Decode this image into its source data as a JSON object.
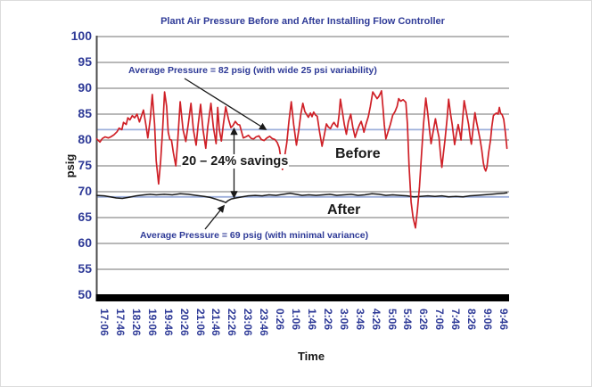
{
  "chart_data": {
    "type": "line",
    "title": "Plant Air Pressure Before and After Installing Flow Controller",
    "xlabel": "Time",
    "ylabel": "psig",
    "ylim": [
      50,
      100
    ],
    "grid": true,
    "legend_position": "inline-labels",
    "y_ticks": [
      100,
      95,
      90,
      85,
      80,
      75,
      70,
      65,
      60,
      55,
      50
    ],
    "x_ticks": [
      "17:06",
      "17:46",
      "18:26",
      "19:06",
      "19:46",
      "20:26",
      "21:06",
      "21:46",
      "22:26",
      "23:06",
      "23:46",
      "0:26",
      "1:06",
      "1:46",
      "2:26",
      "3:06",
      "3:46",
      "4:26",
      "5:06",
      "5:46",
      "6:26",
      "7:06",
      "7:46",
      "8:26",
      "9:06",
      "9:46"
    ],
    "x_tick_interval_minutes": 40,
    "annotations": {
      "avg_before": "Average Pressure = 82 psig (with wide 25 psi variability)",
      "savings": "20 – 24% savings",
      "avg_after": "Average Pressure = 69 psig (with minimal variance)"
    },
    "colors": {
      "text_blue": "#2e3a97",
      "text_black": "#1a1a1a",
      "before_line": "#cf2027",
      "after_line": "#1a1a1a",
      "average_line": "#9dafdb",
      "gridline": "#8e8e8e",
      "axis": "#4d4d4d",
      "baseline_bar": "#000000",
      "background": "#ffffff"
    },
    "series": [
      {
        "name": "Before",
        "label": "Before",
        "color": "#cf2027",
        "average": 82,
        "points": [
          [
            -19,
            80.2
          ],
          [
            -11,
            79.6
          ],
          [
            -5,
            80.3
          ],
          [
            2,
            80.6
          ],
          [
            10,
            80.4
          ],
          [
            16,
            80.6
          ],
          [
            24,
            81.0
          ],
          [
            32,
            81.6
          ],
          [
            37,
            82.3
          ],
          [
            44,
            82.0
          ],
          [
            48,
            83.4
          ],
          [
            55,
            83.0
          ],
          [
            59,
            84.3
          ],
          [
            64,
            83.9
          ],
          [
            70,
            84.7
          ],
          [
            76,
            84.3
          ],
          [
            82,
            85.0
          ],
          [
            88,
            83.5
          ],
          [
            98,
            85.8
          ],
          [
            104,
            83.0
          ],
          [
            109,
            80.4
          ],
          [
            115,
            84.0
          ],
          [
            120,
            88.8
          ],
          [
            126,
            83.0
          ],
          [
            130,
            76.0
          ],
          [
            136,
            71.5
          ],
          [
            141,
            76.0
          ],
          [
            146,
            82.0
          ],
          [
            151,
            89.3
          ],
          [
            156,
            86.5
          ],
          [
            160,
            81.5
          ],
          [
            164,
            80.1
          ],
          [
            168,
            80.0
          ],
          [
            173,
            77.5
          ],
          [
            179,
            75.0
          ],
          [
            184,
            80.0
          ],
          [
            190,
            87.4
          ],
          [
            197,
            82.0
          ],
          [
            204,
            79.7
          ],
          [
            210,
            83.0
          ],
          [
            217,
            87.1
          ],
          [
            223,
            82.0
          ],
          [
            230,
            79.0
          ],
          [
            235,
            83.0
          ],
          [
            241,
            86.9
          ],
          [
            247,
            82.0
          ],
          [
            254,
            78.4
          ],
          [
            259,
            82.5
          ],
          [
            267,
            87.1
          ],
          [
            273,
            82.5
          ],
          [
            280,
            79.3
          ],
          [
            284,
            86.3
          ],
          [
            288,
            82.0
          ],
          [
            293,
            79.8
          ],
          [
            298,
            83.0
          ],
          [
            304,
            86.4
          ],
          [
            311,
            84.0
          ],
          [
            317,
            82.4
          ],
          [
            322,
            82.8
          ],
          [
            328,
            83.6
          ],
          [
            334,
            83.0
          ],
          [
            339,
            82.9
          ],
          [
            344,
            81.5
          ],
          [
            348,
            80.4
          ],
          [
            354,
            80.6
          ],
          [
            361,
            80.9
          ],
          [
            368,
            80.3
          ],
          [
            374,
            80.2
          ],
          [
            380,
            80.6
          ],
          [
            387,
            80.8
          ],
          [
            393,
            80.1
          ],
          [
            400,
            79.9
          ],
          [
            407,
            80.4
          ],
          [
            414,
            80.7
          ],
          [
            420,
            80.3
          ],
          [
            427,
            80.1
          ],
          [
            433,
            79.5
          ],
          [
            438,
            78.5
          ],
          [
            443,
            76.0
          ],
          [
            446,
            74.3
          ],
          [
            451,
            76.5
          ],
          [
            457,
            79.5
          ],
          [
            462,
            83.5
          ],
          [
            468,
            87.4
          ],
          [
            474,
            83.0
          ],
          [
            481,
            79.0
          ],
          [
            487,
            82.0
          ],
          [
            492,
            85.0
          ],
          [
            497,
            87.1
          ],
          [
            502,
            85.5
          ],
          [
            506,
            85.0
          ],
          [
            511,
            84.4
          ],
          [
            516,
            85.2
          ],
          [
            520,
            84.5
          ],
          [
            524,
            85.4
          ],
          [
            529,
            84.8
          ],
          [
            533,
            84.6
          ],
          [
            539,
            81.5
          ],
          [
            545,
            78.8
          ],
          [
            551,
            81.0
          ],
          [
            556,
            83.1
          ],
          [
            561,
            82.5
          ],
          [
            566,
            82.2
          ],
          [
            571,
            83.0
          ],
          [
            575,
            83.4
          ],
          [
            580,
            82.8
          ],
          [
            584,
            82.5
          ],
          [
            588,
            85.0
          ],
          [
            591,
            87.9
          ],
          [
            596,
            85.5
          ],
          [
            601,
            83.0
          ],
          [
            606,
            81.1
          ],
          [
            611,
            83.5
          ],
          [
            617,
            85.0
          ],
          [
            622,
            82.5
          ],
          [
            628,
            80.5
          ],
          [
            634,
            82.0
          ],
          [
            639,
            83.0
          ],
          [
            643,
            83.6
          ],
          [
            647,
            82.5
          ],
          [
            650,
            81.5
          ],
          [
            655,
            83.0
          ],
          [
            661,
            84.5
          ],
          [
            666,
            86.5
          ],
          [
            672,
            89.3
          ],
          [
            678,
            88.6
          ],
          [
            683,
            88.0
          ],
          [
            687,
            88.4
          ],
          [
            691,
            89.0
          ],
          [
            694,
            89.5
          ],
          [
            698,
            86.0
          ],
          [
            701,
            83.0
          ],
          [
            705,
            80.2
          ],
          [
            710,
            81.5
          ],
          [
            716,
            83.0
          ],
          [
            722,
            84.8
          ],
          [
            728,
            85.5
          ],
          [
            733,
            86.5
          ],
          [
            737,
            88.0
          ],
          [
            742,
            87.5
          ],
          [
            748,
            87.8
          ],
          [
            755,
            87.3
          ],
          [
            759,
            83.0
          ],
          [
            763,
            75.0
          ],
          [
            768,
            68.0
          ],
          [
            773,
            65.0
          ],
          [
            779,
            63.0
          ],
          [
            784,
            66.5
          ],
          [
            789,
            71.0
          ],
          [
            794,
            77.0
          ],
          [
            799,
            83.0
          ],
          [
            805,
            88.1
          ],
          [
            810,
            85.0
          ],
          [
            814,
            82.0
          ],
          [
            818,
            79.3
          ],
          [
            823,
            81.5
          ],
          [
            829,
            84.1
          ],
          [
            834,
            82.0
          ],
          [
            838,
            80.5
          ],
          [
            842,
            77.0
          ],
          [
            845,
            74.7
          ],
          [
            849,
            77.5
          ],
          [
            853,
            80.0
          ],
          [
            858,
            84.0
          ],
          [
            862,
            87.9
          ],
          [
            867,
            85.0
          ],
          [
            871,
            83.0
          ],
          [
            877,
            79.1
          ],
          [
            881,
            81.0
          ],
          [
            886,
            83.0
          ],
          [
            890,
            81.5
          ],
          [
            893,
            80.0
          ],
          [
            897,
            84.0
          ],
          [
            901,
            87.6
          ],
          [
            906,
            85.5
          ],
          [
            912,
            83.0
          ],
          [
            916,
            80.5
          ],
          [
            919,
            79.2
          ],
          [
            923,
            82.0
          ],
          [
            928,
            85.3
          ],
          [
            932,
            83.5
          ],
          [
            936,
            82.0
          ],
          [
            941,
            80.0
          ],
          [
            945,
            78.0
          ],
          [
            949,
            75.5
          ],
          [
            952,
            74.5
          ],
          [
            955,
            74.0
          ],
          [
            958,
            74.8
          ],
          [
            962,
            77.5
          ],
          [
            967,
            80.0
          ],
          [
            970,
            82.5
          ],
          [
            974,
            84.7
          ],
          [
            978,
            85.0
          ],
          [
            982,
            85.2
          ],
          [
            986,
            85.0
          ],
          [
            989,
            86.3
          ],
          [
            992,
            85.2
          ],
          [
            996,
            84.9
          ],
          [
            1000,
            84.0
          ],
          [
            1004,
            81.5
          ],
          [
            1008,
            78.4
          ]
        ]
      },
      {
        "name": "After",
        "label": "After",
        "color": "#1a1a1a",
        "average": 69,
        "points": [
          [
            -19,
            69.3
          ],
          [
            0,
            69.2
          ],
          [
            15,
            69.0
          ],
          [
            30,
            68.8
          ],
          [
            45,
            68.7
          ],
          [
            60,
            68.9
          ],
          [
            80,
            69.2
          ],
          [
            100,
            69.4
          ],
          [
            115,
            69.5
          ],
          [
            130,
            69.4
          ],
          [
            150,
            69.5
          ],
          [
            170,
            69.4
          ],
          [
            190,
            69.6
          ],
          [
            210,
            69.5
          ],
          [
            230,
            69.3
          ],
          [
            250,
            69.1
          ],
          [
            265,
            68.9
          ],
          [
            278,
            68.6
          ],
          [
            290,
            68.3
          ],
          [
            298,
            68.1
          ],
          [
            304,
            67.9
          ],
          [
            310,
            68.3
          ],
          [
            318,
            68.6
          ],
          [
            330,
            68.8
          ],
          [
            345,
            69.0
          ],
          [
            360,
            69.2
          ],
          [
            378,
            69.3
          ],
          [
            395,
            69.2
          ],
          [
            412,
            69.4
          ],
          [
            430,
            69.3
          ],
          [
            448,
            69.5
          ],
          [
            465,
            69.7
          ],
          [
            480,
            69.5
          ],
          [
            495,
            69.3
          ],
          [
            512,
            69.4
          ],
          [
            530,
            69.3
          ],
          [
            548,
            69.4
          ],
          [
            565,
            69.5
          ],
          [
            582,
            69.3
          ],
          [
            600,
            69.4
          ],
          [
            618,
            69.5
          ],
          [
            635,
            69.3
          ],
          [
            652,
            69.4
          ],
          [
            670,
            69.6
          ],
          [
            688,
            69.5
          ],
          [
            705,
            69.3
          ],
          [
            722,
            69.4
          ],
          [
            740,
            69.3
          ],
          [
            758,
            69.2
          ],
          [
            775,
            69.0
          ],
          [
            792,
            69.1
          ],
          [
            810,
            69.2
          ],
          [
            828,
            69.1
          ],
          [
            845,
            69.2
          ],
          [
            862,
            69.0
          ],
          [
            880,
            69.1
          ],
          [
            898,
            69.0
          ],
          [
            915,
            69.2
          ],
          [
            932,
            69.3
          ],
          [
            950,
            69.4
          ],
          [
            968,
            69.5
          ],
          [
            984,
            69.6
          ],
          [
            1000,
            69.7
          ],
          [
            1008,
            69.8
          ]
        ]
      }
    ]
  }
}
